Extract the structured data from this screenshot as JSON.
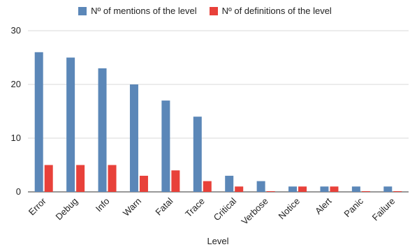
{
  "chart_data": {
    "type": "bar",
    "title": "",
    "xlabel": "Level",
    "ylabel": "",
    "ylim": [
      0,
      30
    ],
    "yticks": [
      0,
      10,
      20,
      30
    ],
    "grid": true,
    "legend_position": "top-center",
    "categories": [
      "Error",
      "Debug",
      "Info",
      "Warn",
      "Fatal",
      "Trace",
      "Critical",
      "Verbose",
      "Notice",
      "Alert",
      "Panic",
      "Failure"
    ],
    "series": [
      {
        "name": "Nº of mentions of the level",
        "color": "#5b87b8",
        "values": [
          26,
          25,
          23,
          20,
          17,
          14,
          3,
          2,
          1,
          1,
          1,
          1
        ]
      },
      {
        "name": "Nº of definitions of the level",
        "color": "#e8413a",
        "values": [
          5,
          5,
          5,
          3,
          4,
          2,
          1,
          0,
          1,
          1,
          0,
          0
        ]
      }
    ]
  }
}
